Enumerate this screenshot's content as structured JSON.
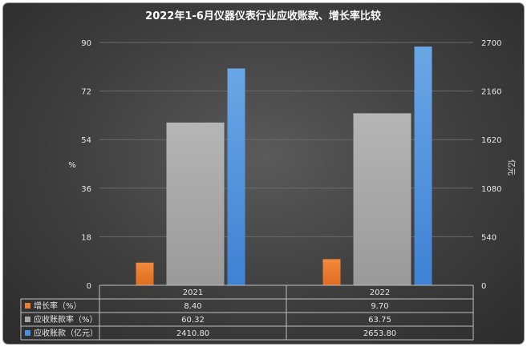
{
  "chart_data": {
    "type": "bar",
    "title": "2022年1-6月仪器仪表行业应收账款、增长率比较",
    "categories": [
      "2021",
      "2022"
    ],
    "left_axis": {
      "label": "%",
      "min": 0,
      "max": 90,
      "ticks": [
        "0",
        "18",
        "36",
        "54",
        "72",
        "90"
      ]
    },
    "right_axis": {
      "label": "亿元",
      "min": 0,
      "max": 2700,
      "ticks": [
        "0",
        "540",
        "1080",
        "1620",
        "2160",
        "2700"
      ]
    },
    "series": [
      {
        "name": "增长率（%）",
        "axis": "left",
        "color": "#ed7d31",
        "values": [
          8.4,
          9.7
        ],
        "labels": [
          "8.40",
          "9.70"
        ]
      },
      {
        "name": "应收账款率（%）",
        "axis": "left",
        "color": "#a5a5a5",
        "values": [
          60.32,
          63.75
        ],
        "labels": [
          "60.32",
          "63.75"
        ]
      },
      {
        "name": "应收账款（亿元）",
        "axis": "right",
        "color": "#4a8fdc",
        "values": [
          2410.8,
          2653.8
        ],
        "labels": [
          "2410.80",
          "2653.80"
        ]
      }
    ],
    "grid": true,
    "legend": "data-table"
  }
}
